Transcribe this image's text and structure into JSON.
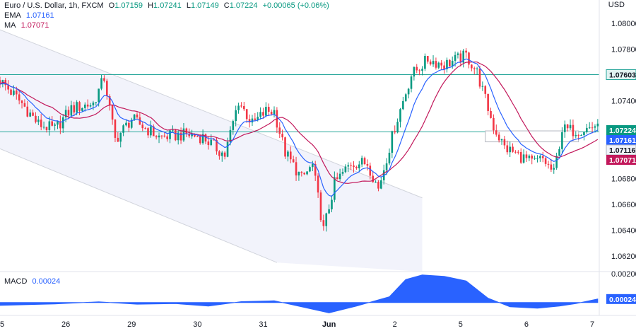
{
  "header": {
    "symbol": "Euro / U.S. Dollar, 1h, FXCM",
    "open_label": "O",
    "open": "1.07159",
    "high_label": "H",
    "high": "1.07241",
    "low_label": "L",
    "low": "1.07149",
    "close_label": "C",
    "close": "1.07224",
    "change": "+0.00065 (+0.06%)",
    "ema_label": "EMA",
    "ema": "1.07161",
    "ma_label": "MA",
    "ma": "1.07071",
    "currency": "USD"
  },
  "macd": {
    "label": "MACD",
    "value": "0.00024"
  },
  "colors": {
    "up": "#089981",
    "down": "#f23645",
    "ema": "#2962ff",
    "ma": "#c2185b",
    "hline": "#26a69a",
    "channel": "#f2f3fb",
    "macd": "#2962ff"
  },
  "chart_data": {
    "type": "candlestick",
    "price_axis": {
      "ticks": [
        "1.08000",
        "1.07800",
        "1.07400",
        "1.06800",
        "1.06600",
        "1.06400",
        "1.06200"
      ],
      "range": [
        1.0608,
        1.0818
      ]
    },
    "x_axis": {
      "ticks": [
        "5",
        "26",
        "29",
        "30",
        "31",
        "Jun",
        "2",
        "5",
        "6",
        "7"
      ],
      "tick_positions_hours": [
        0,
        24,
        48,
        72,
        96,
        120,
        144,
        168,
        192,
        216
      ]
    },
    "horizontal_levels": [
      1.07603,
      1.07161
    ],
    "price_labels": [
      {
        "value": "1.07603",
        "kind": "level"
      },
      {
        "value": "1.07224",
        "kind": "close"
      },
      {
        "value": "1.07161",
        "kind": "ema"
      },
      {
        "value": "1.07116",
        "kind": "box"
      },
      {
        "value": "1.07071",
        "kind": "ma"
      }
    ],
    "box": {
      "x_hours": [
        177,
        211
      ],
      "y": [
        1.07116,
        1.07168
      ]
    },
    "channel": {
      "upper": [
        [
          0,
          1.0795
        ],
        [
          154,
          1.0665
        ]
      ],
      "lower": [
        [
          0,
          1.0703
        ],
        [
          101,
          1.0615
        ]
      ],
      "end_hour": 154
    },
    "price_path": [
      [
        0,
        1.0756
      ],
      [
        8,
        1.0738
      ],
      [
        14,
        1.0722
      ],
      [
        20,
        1.0718
      ],
      [
        26,
        1.0734
      ],
      [
        34,
        1.0738
      ],
      [
        38,
        1.0758
      ],
      [
        42,
        1.071
      ],
      [
        48,
        1.0726
      ],
      [
        58,
        1.0712
      ],
      [
        68,
        1.0714
      ],
      [
        74,
        1.0712
      ],
      [
        82,
        1.0698
      ],
      [
        87,
        1.074
      ],
      [
        92,
        1.0722
      ],
      [
        97,
        1.0732
      ],
      [
        100,
        1.0732
      ],
      [
        104,
        1.07
      ],
      [
        110,
        1.068
      ],
      [
        114,
        1.069
      ],
      [
        118,
        1.064
      ],
      [
        122,
        1.0676
      ],
      [
        128,
        1.0692
      ],
      [
        134,
        1.0692
      ],
      [
        138,
        1.0672
      ],
      [
        144,
        1.072
      ],
      [
        150,
        1.076
      ],
      [
        156,
        1.0772
      ],
      [
        162,
        1.0768
      ],
      [
        170,
        1.0775
      ],
      [
        174,
        1.0762
      ],
      [
        180,
        1.072
      ],
      [
        184,
        1.0704
      ],
      [
        190,
        1.0697
      ],
      [
        194,
        1.0692
      ],
      [
        198,
        1.0695
      ],
      [
        202,
        1.0684
      ],
      [
        205,
        1.0718
      ],
      [
        209,
        1.0717
      ],
      [
        215,
        1.0719
      ],
      [
        218,
        1.07224
      ]
    ],
    "macd_ticks": [
      "0.00200"
    ],
    "macd_range": [
      -0.0009,
      0.00215
    ],
    "macd_path": [
      [
        0,
        -0.0002
      ],
      [
        20,
        -0.0001
      ],
      [
        36,
        5e-05
      ],
      [
        50,
        -0.00012
      ],
      [
        64,
        -8e-05
      ],
      [
        76,
        -0.00025
      ],
      [
        88,
        6e-05
      ],
      [
        100,
        0.00012
      ],
      [
        110,
        -0.0003
      ],
      [
        120,
        -0.00072
      ],
      [
        130,
        -0.00025
      ],
      [
        142,
        0.0004
      ],
      [
        148,
        0.0016
      ],
      [
        154,
        0.00192
      ],
      [
        162,
        0.00182
      ],
      [
        170,
        0.0015
      ],
      [
        178,
        0.0003
      ],
      [
        186,
        -0.0003
      ],
      [
        196,
        -0.0004
      ],
      [
        204,
        -0.00025
      ],
      [
        210,
        -8e-05
      ],
      [
        218,
        0.00024
      ]
    ]
  }
}
